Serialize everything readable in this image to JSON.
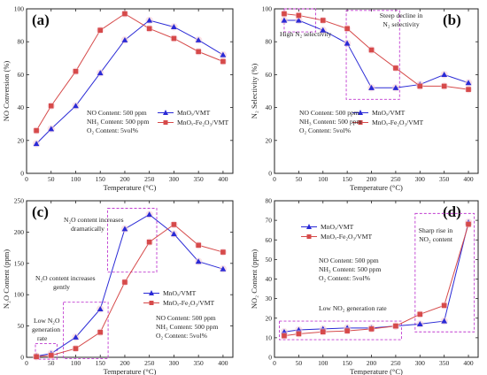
{
  "chart_data": [
    {
      "panel": "(a)",
      "type": "line",
      "xlabel": "Temperature (°C)",
      "ylabel": "NO Conversion (%)",
      "xlim": [
        0,
        420
      ],
      "ylim": [
        0,
        100
      ],
      "xticks": [
        0,
        50,
        100,
        150,
        200,
        250,
        300,
        350,
        400
      ],
      "yticks": [
        0,
        20,
        40,
        60,
        80,
        100
      ],
      "x": [
        20,
        50,
        100,
        150,
        200,
        250,
        300,
        350,
        400
      ],
      "series": [
        {
          "name": "MnOₓ/VMT",
          "marker": "triangle",
          "color": "#2a2ad6",
          "values": [
            18,
            27,
            41,
            61,
            81,
            93,
            89,
            81,
            72
          ]
        },
        {
          "name": "MnOₓ-Fe₂O₃/VMT",
          "marker": "square",
          "color": "#d64a4a",
          "values": [
            26,
            41,
            62,
            87,
            97,
            88,
            82,
            74,
            68
          ]
        }
      ],
      "conditions": [
        "NO Content: 500 ppm",
        "NH₃ Content: 500 ppm",
        "O₂ Content: 5vol%"
      ],
      "annotations": []
    },
    {
      "panel": "(b)",
      "type": "line",
      "xlabel": "Temperature (°C)",
      "ylabel": "N₂ Selectivity (%)",
      "xlim": [
        0,
        420
      ],
      "ylim": [
        0,
        100
      ],
      "xticks": [
        0,
        50,
        100,
        150,
        200,
        250,
        300,
        350,
        400
      ],
      "yticks": [
        0,
        20,
        40,
        60,
        80,
        100
      ],
      "x": [
        20,
        50,
        100,
        150,
        200,
        250,
        300,
        350,
        400
      ],
      "series": [
        {
          "name": "MnOₓ/VMT",
          "marker": "triangle",
          "color": "#2a2ad6",
          "values": [
            93,
            93,
            87,
            79,
            52,
            52,
            54,
            60,
            55
          ]
        },
        {
          "name": "MnOₓ-Fe₂O₃/VMT",
          "marker": "square",
          "color": "#d64a4a",
          "values": [
            97,
            96,
            93,
            88,
            75,
            64,
            53,
            53,
            51
          ]
        }
      ],
      "conditions": [
        "NO Content: 500 ppm",
        "NH₃ Content: 500 ppm",
        "O₂ Content: 5vol%"
      ],
      "annotations": [
        "High N₂ selectivity",
        "Steep decline in",
        "N₂ selectivity"
      ]
    },
    {
      "panel": "(c)",
      "type": "line",
      "xlabel": "Temperature (°C)",
      "ylabel": "N₂O Content (ppm)",
      "xlim": [
        0,
        420
      ],
      "ylim": [
        0,
        250
      ],
      "xticks": [
        0,
        50,
        100,
        150,
        200,
        250,
        300,
        350,
        400
      ],
      "yticks": [
        0,
        50,
        100,
        150,
        200,
        250
      ],
      "x": [
        20,
        50,
        100,
        150,
        200,
        250,
        300,
        350,
        400
      ],
      "series": [
        {
          "name": "MnOₓ/VMT",
          "marker": "triangle",
          "color": "#2a2ad6",
          "values": [
            2,
            6,
            32,
            77,
            205,
            228,
            197,
            153,
            141
          ]
        },
        {
          "name": "MnOₓ-Fe₂O₃/VMT",
          "marker": "square",
          "color": "#d64a4a",
          "values": [
            1,
            3,
            14,
            40,
            120,
            184,
            212,
            179,
            168
          ]
        }
      ],
      "conditions": [
        "NO Content: 500 ppm",
        "NH₃ Content: 500 ppm",
        "O₂ Content: 5vol%"
      ],
      "annotations": [
        "N₂O content increases",
        "dramatically",
        "N₂O content increases",
        "gently",
        "Low N₂O",
        "generation",
        "rate"
      ]
    },
    {
      "panel": "(d)",
      "type": "line",
      "xlabel": "Temperature (°C)",
      "ylabel": "NO₂ Content (ppm)",
      "xlim": [
        0,
        420
      ],
      "ylim": [
        0,
        80
      ],
      "xticks": [
        0,
        50,
        100,
        150,
        200,
        250,
        300,
        350,
        400
      ],
      "yticks": [
        0,
        10,
        20,
        30,
        40,
        50,
        60,
        70,
        80
      ],
      "x": [
        20,
        50,
        100,
        150,
        200,
        250,
        300,
        350,
        400
      ],
      "series": [
        {
          "name": "MnOₓ/VMT",
          "marker": "triangle",
          "color": "#2a2ad6",
          "values": [
            13,
            14,
            14.5,
            15,
            15,
            16,
            17,
            18.5,
            69
          ]
        },
        {
          "name": "MnOₓ-Fe₂O₃/VMT",
          "marker": "square",
          "color": "#d64a4a",
          "values": [
            11,
            12,
            13,
            13.5,
            14.5,
            16,
            22,
            26.5,
            68
          ]
        }
      ],
      "conditions": [
        "NO Content: 500 ppm",
        "NH₃ Content: 500 ppm",
        "O₂ Content: 5vol%"
      ],
      "annotations": [
        "Low NO₂ generation rate",
        "Sharp rise in",
        "NO₂ content"
      ]
    }
  ]
}
